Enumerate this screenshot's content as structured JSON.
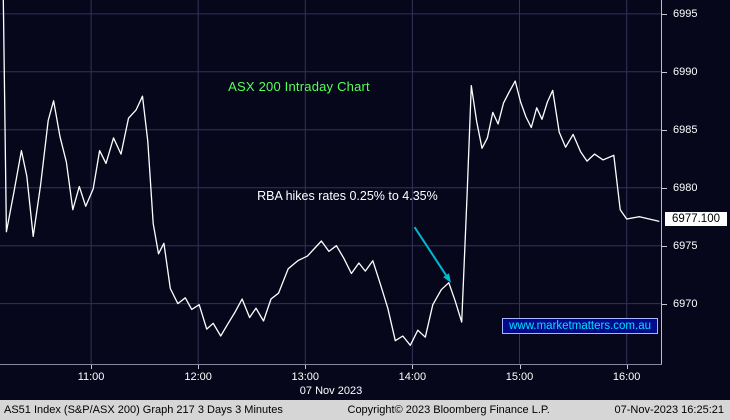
{
  "window": {
    "status_bar": {
      "left": "AS51 Index (S&P/ASX 200) Graph 217 3 Days 3 Minutes",
      "center": "Copyright© 2023 Bloomberg Finance L.P.",
      "right": "07-Nov-2023 16:25:21"
    }
  },
  "chart_data": {
    "type": "line",
    "title": "ASX 200 Intraday Chart",
    "title_pos": [
      12.28,
      6989.4
    ],
    "date_label": "07 Nov 2023",
    "watermark": "www.marketmatters.com.au",
    "last_price": 6977.1,
    "last_price_label": "6977.100",
    "x_range": [
      10.15,
      16.33
    ],
    "y_range": [
      6964.7,
      6996.2
    ],
    "x_ticks": [
      {
        "t": 11,
        "label": "11:00"
      },
      {
        "t": 12,
        "label": "12:00"
      },
      {
        "t": 13,
        "label": "13:00"
      },
      {
        "t": 14,
        "label": "14:00"
      },
      {
        "t": 15,
        "label": "15:00"
      },
      {
        "t": 16,
        "label": "16:00"
      }
    ],
    "y_ticks": [
      {
        "v": 6995,
        "label": "6995"
      },
      {
        "v": 6990,
        "label": "6990"
      },
      {
        "v": 6985,
        "label": "6985"
      },
      {
        "v": 6980,
        "label": "6980"
      },
      {
        "v": 6975,
        "label": "6975"
      },
      {
        "v": 6970,
        "label": "6970"
      }
    ],
    "annotation": {
      "text": "RBA hikes rates 0.25% to 4.35%",
      "pos": [
        12.55,
        6979.9
      ],
      "arrow": {
        "from": [
          14.02,
          6976.6
        ],
        "to": [
          14.36,
          6971.8
        ]
      }
    },
    "series": [
      {
        "name": "AS51 Index",
        "points": [
          [
            10.18,
            6997
          ],
          [
            10.21,
            6976.2
          ],
          [
            10.28,
            6979.6
          ],
          [
            10.35,
            6983.2
          ],
          [
            10.4,
            6981
          ],
          [
            10.46,
            6975.8
          ],
          [
            10.53,
            6980.3
          ],
          [
            10.6,
            6985.8
          ],
          [
            10.65,
            6987.5
          ],
          [
            10.71,
            6984.4
          ],
          [
            10.77,
            6982.2
          ],
          [
            10.83,
            6978.1
          ],
          [
            10.89,
            6980.1
          ],
          [
            10.95,
            6978.4
          ],
          [
            11.02,
            6979.9
          ],
          [
            11.08,
            6983.2
          ],
          [
            11.14,
            6982.1
          ],
          [
            11.21,
            6984.3
          ],
          [
            11.28,
            6982.9
          ],
          [
            11.35,
            6986
          ],
          [
            11.42,
            6986.7
          ],
          [
            11.48,
            6987.9
          ],
          [
            11.53,
            6984
          ],
          [
            11.58,
            6976.9
          ],
          [
            11.63,
            6974.3
          ],
          [
            11.68,
            6975.2
          ],
          [
            11.74,
            6971.3
          ],
          [
            11.81,
            6970
          ],
          [
            11.88,
            6970.5
          ],
          [
            11.94,
            6969.5
          ],
          [
            12.01,
            6969.9
          ],
          [
            12.08,
            6967.8
          ],
          [
            12.14,
            6968.3
          ],
          [
            12.21,
            6967.2
          ],
          [
            12.28,
            6968.3
          ],
          [
            12.34,
            6969.2
          ],
          [
            12.41,
            6970.4
          ],
          [
            12.48,
            6968.8
          ],
          [
            12.54,
            6969.6
          ],
          [
            12.61,
            6968.5
          ],
          [
            12.68,
            6970.4
          ],
          [
            12.75,
            6970.9
          ],
          [
            12.84,
            6973
          ],
          [
            12.93,
            6973.7
          ],
          [
            13.02,
            6974.1
          ],
          [
            13.09,
            6974.8
          ],
          [
            13.15,
            6975.4
          ],
          [
            13.22,
            6974.5
          ],
          [
            13.29,
            6975
          ],
          [
            13.36,
            6973.9
          ],
          [
            13.43,
            6972.6
          ],
          [
            13.5,
            6973.5
          ],
          [
            13.56,
            6972.8
          ],
          [
            13.63,
            6973.7
          ],
          [
            13.7,
            6971.7
          ],
          [
            13.77,
            6969.6
          ],
          [
            13.84,
            6966.8
          ],
          [
            13.91,
            6967.2
          ],
          [
            13.98,
            6966.4
          ],
          [
            14.05,
            6967.7
          ],
          [
            14.12,
            6967.1
          ],
          [
            14.19,
            6969.9
          ],
          [
            14.27,
            6971.2
          ],
          [
            14.34,
            6971.8
          ],
          [
            14.4,
            6970.2
          ],
          [
            14.46,
            6968.4
          ],
          [
            14.51,
            6979.2
          ],
          [
            14.55,
            6988.8
          ],
          [
            14.6,
            6985.7
          ],
          [
            14.65,
            6983.4
          ],
          [
            14.7,
            6984.3
          ],
          [
            14.75,
            6986.5
          ],
          [
            14.8,
            6985.5
          ],
          [
            14.85,
            6987.3
          ],
          [
            14.9,
            6988.2
          ],
          [
            14.96,
            6989.2
          ],
          [
            15.01,
            6987.4
          ],
          [
            15.06,
            6986.1
          ],
          [
            15.11,
            6985.2
          ],
          [
            15.16,
            6986.9
          ],
          [
            15.21,
            6985.9
          ],
          [
            15.26,
            6987.4
          ],
          [
            15.31,
            6988.4
          ],
          [
            15.37,
            6984.8
          ],
          [
            15.43,
            6983.5
          ],
          [
            15.5,
            6984.6
          ],
          [
            15.57,
            6983.1
          ],
          [
            15.63,
            6982.3
          ],
          [
            15.7,
            6982.9
          ],
          [
            15.78,
            6982.4
          ],
          [
            15.88,
            6982.8
          ],
          [
            15.94,
            6978.1
          ],
          [
            16,
            6977.3
          ],
          [
            16.12,
            6977.5
          ],
          [
            16.3,
            6977.1
          ]
        ]
      }
    ],
    "colors": {
      "background": "#07071c",
      "grid": "#32325a",
      "line": "#ffffff",
      "title": "#55ff55",
      "arrow": "#00b8d4",
      "axis": "#c0c0c0",
      "watermark": "#00e0ff"
    }
  }
}
